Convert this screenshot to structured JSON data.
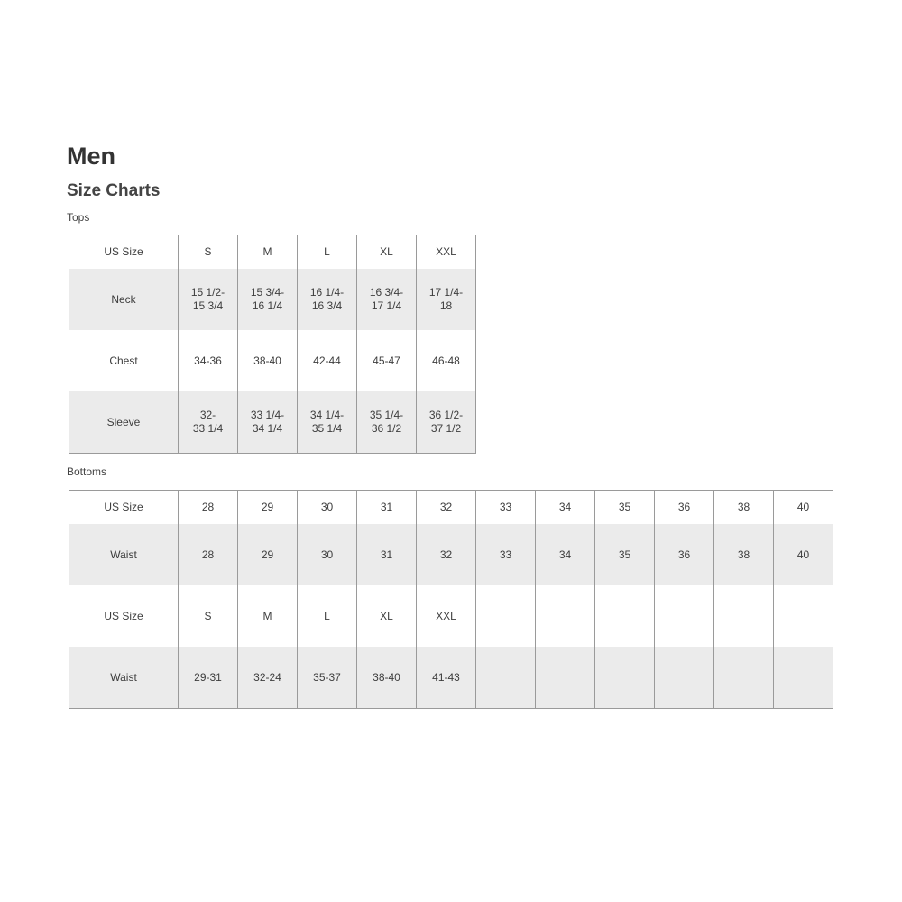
{
  "page": {
    "title": "Men",
    "subtitle": "Size Charts"
  },
  "tops": {
    "label": "Tops",
    "rows": [
      [
        "US Size",
        "S",
        "M",
        "L",
        "XL",
        "XXL"
      ],
      [
        "Neck",
        "15 1/2-\n15 3/4",
        "15 3/4-\n16 1/4",
        "16 1/4-\n16 3/4",
        "16 3/4-\n17 1/4",
        "17 1/4-\n18"
      ],
      [
        "Chest",
        "34-36",
        "38-40",
        "42-44",
        "45-47",
        "46-48"
      ],
      [
        "Sleeve",
        "32-\n33 1/4",
        "33 1/4-\n34 1/4",
        "34 1/4-\n35 1/4",
        "35 1/4-\n36 1/2",
        "36 1/2-\n37 1/2"
      ]
    ]
  },
  "bottoms": {
    "label": "Bottoms",
    "rows": [
      [
        "US Size",
        "28",
        "29",
        "30",
        "31",
        "32",
        "33",
        "34",
        "35",
        "36",
        "38",
        "40"
      ],
      [
        "Waist",
        "28",
        "29",
        "30",
        "31",
        "32",
        "33",
        "34",
        "35",
        "36",
        "38",
        "40"
      ],
      [
        "US Size",
        "S",
        "M",
        "L",
        "XL",
        "XXL",
        "",
        "",
        "",
        "",
        "",
        ""
      ],
      [
        "Waist",
        "29-31",
        "32-24",
        "35-37",
        "38-40",
        "41-43",
        "",
        "",
        "",
        "",
        "",
        ""
      ]
    ]
  },
  "colors": {
    "row_shade": "#ebebeb",
    "border": "#9a9a9a",
    "text": "#3a3a3a"
  }
}
